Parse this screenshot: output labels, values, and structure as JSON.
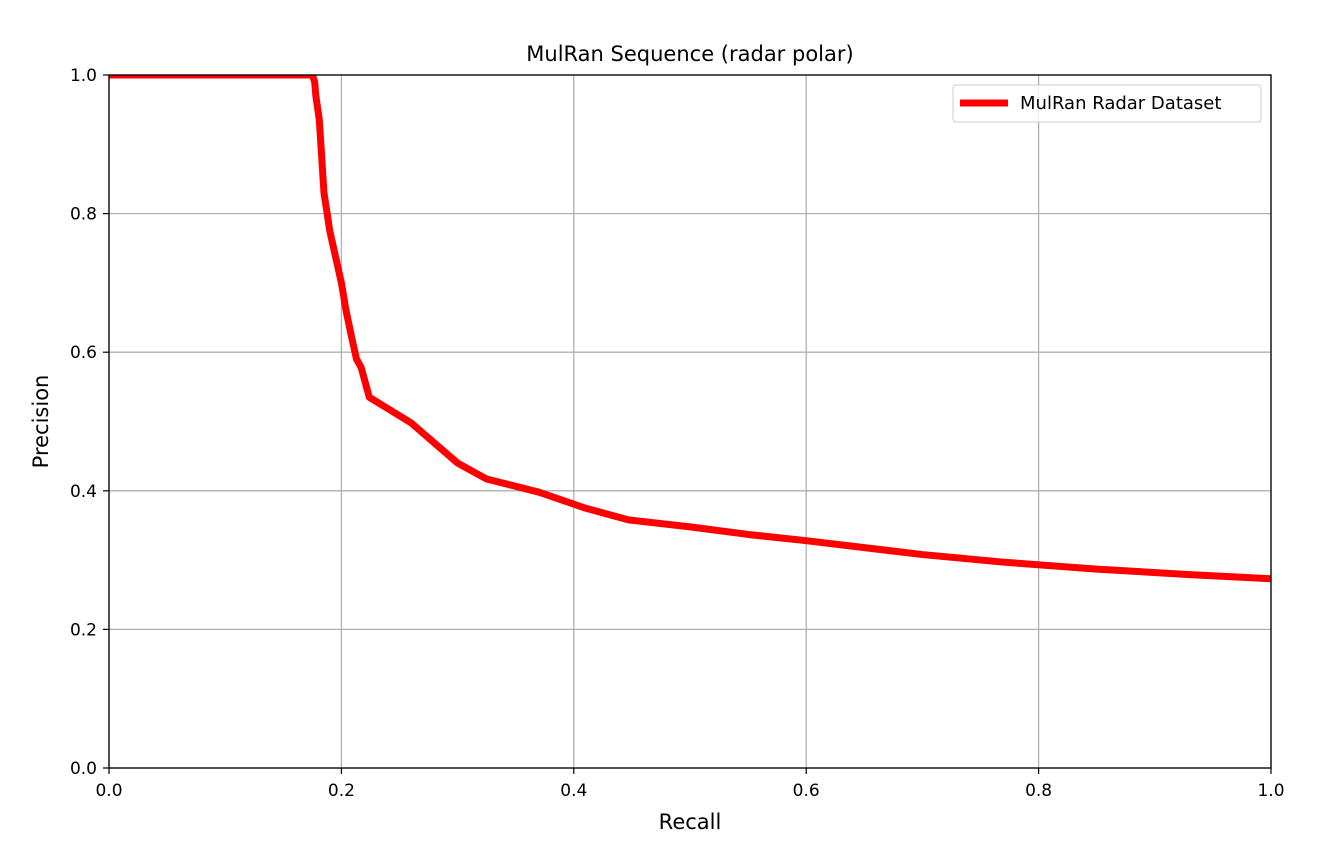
{
  "chart_data": {
    "type": "line",
    "title": "MulRan Sequence (radar polar)",
    "xlabel": "Recall",
    "ylabel": "Precision",
    "xlim": [
      0.0,
      1.0
    ],
    "ylim": [
      0.0,
      1.0
    ],
    "xticks": [
      "0.0",
      "0.2",
      "0.4",
      "0.6",
      "0.8",
      "1.0"
    ],
    "yticks": [
      "0.0",
      "0.2",
      "0.4",
      "0.6",
      "0.8",
      "1.0"
    ],
    "grid": true,
    "legend_position": "top-right",
    "series": [
      {
        "name": "MulRan Radar Dataset",
        "color": "#ff0000",
        "x": [
          0.0,
          0.1,
          0.175,
          0.177,
          0.178,
          0.181,
          0.185,
          0.19,
          0.196,
          0.2,
          0.204,
          0.209,
          0.213,
          0.217,
          0.224,
          0.26,
          0.3,
          0.325,
          0.37,
          0.41,
          0.447,
          0.5,
          0.55,
          0.6,
          0.65,
          0.7,
          0.77,
          0.85,
          0.93,
          1.0
        ],
        "y": [
          1.0,
          1.0,
          1.0,
          0.99,
          0.97,
          0.935,
          0.83,
          0.775,
          0.73,
          0.7,
          0.66,
          0.62,
          0.59,
          0.578,
          0.535,
          0.498,
          0.44,
          0.417,
          0.398,
          0.375,
          0.358,
          0.348,
          0.337,
          0.328,
          0.318,
          0.308,
          0.297,
          0.287,
          0.279,
          0.273
        ]
      }
    ]
  }
}
